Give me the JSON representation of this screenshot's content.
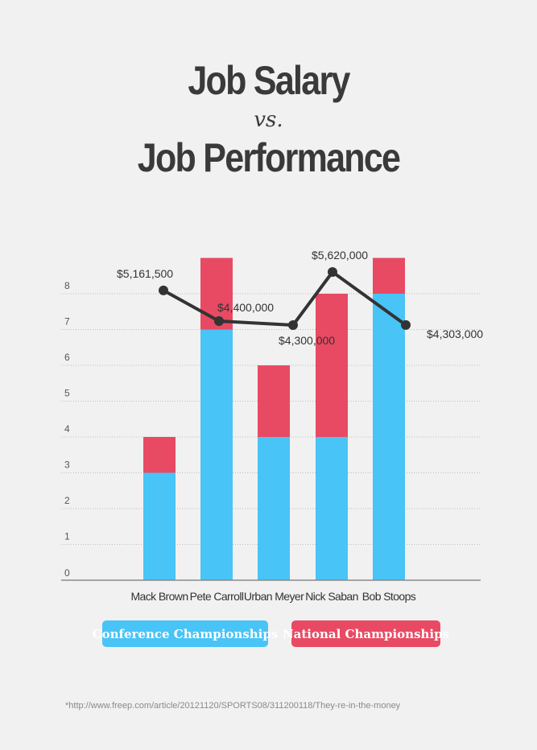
{
  "title": {
    "line1": "Job Salary",
    "vs": "vs.",
    "line2": "Job Performance"
  },
  "chart_data": {
    "type": "bar",
    "stacked": true,
    "categories": [
      "Mack Brown",
      "Pete Carroll",
      "Urban Meyer",
      "Nick Saban",
      "Bob Stoops"
    ],
    "series": [
      {
        "name": "Conference Championships",
        "values": [
          3,
          7,
          4,
          4,
          8
        ],
        "color": "#48c4f7"
      },
      {
        "name": "National Championships",
        "values": [
          1,
          2,
          2,
          4,
          1
        ],
        "color": "#e84a63"
      }
    ],
    "salary_line": {
      "values": [
        5161500,
        4400000,
        4300000,
        5620000,
        4303000
      ],
      "labels": [
        "$5,161,500",
        "$4,400,000",
        "$4,300,000",
        "$5,620,000",
        "$4,303,000"
      ],
      "color": "#333333"
    },
    "yticks": [
      0,
      1,
      2,
      3,
      4,
      5,
      6,
      7,
      8
    ],
    "ylim": [
      0,
      9
    ],
    "grid": true,
    "legend_position": "bottom"
  },
  "legend": {
    "conference": "Conference Championships",
    "national": "National Championships"
  },
  "footnote": "*http://www.freep.com/article/20121120/SPORTS08/311200118/They-re-in-the-money"
}
